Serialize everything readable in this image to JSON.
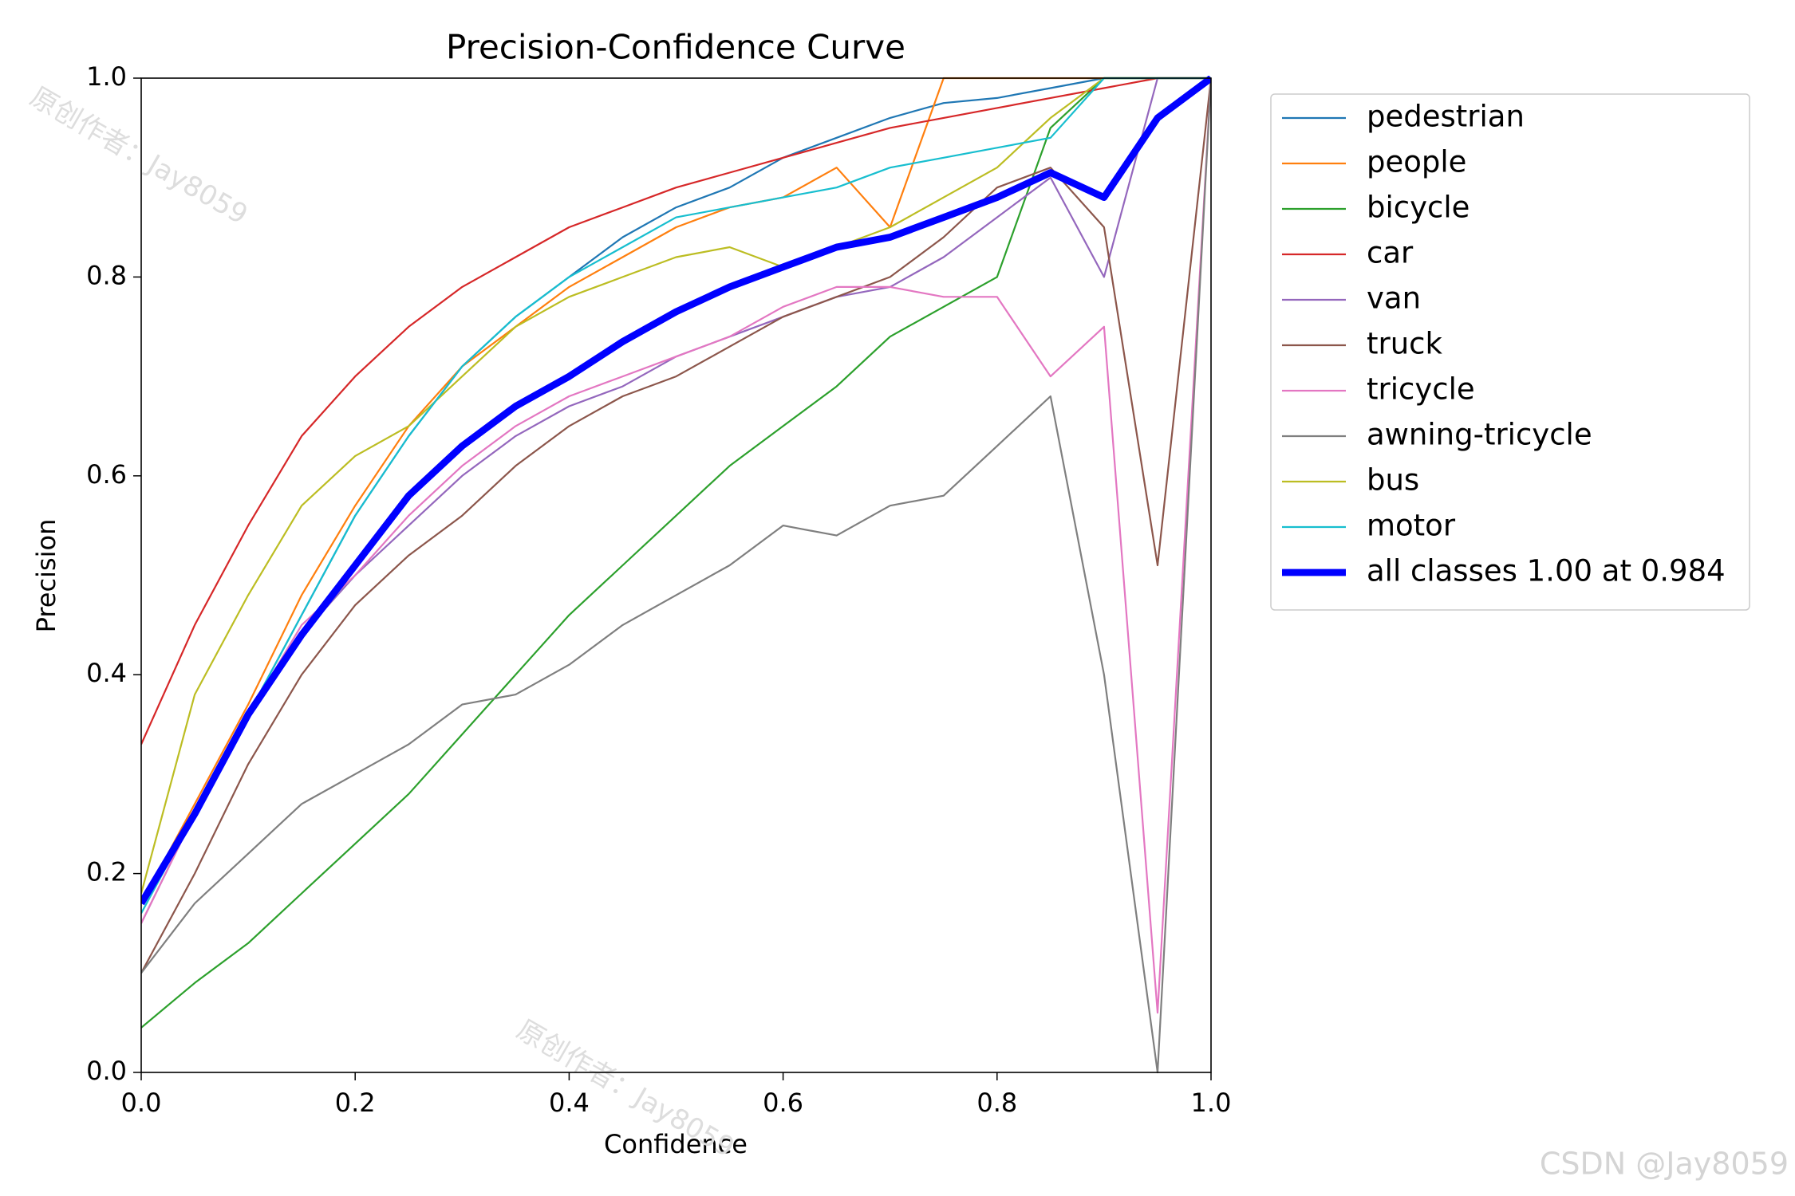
{
  "chart_data": {
    "type": "line",
    "title": "Precision-Confidence Curve",
    "x_label": "Confidence",
    "y_label": "Precision",
    "x": [
      0,
      0.05,
      0.1,
      0.15,
      0.2,
      0.25,
      0.3,
      0.35,
      0.4,
      0.45,
      0.5,
      0.55,
      0.6,
      0.65,
      0.7,
      0.75,
      0.8,
      0.85,
      0.9,
      0.95,
      1.0
    ],
    "xlim": [
      0,
      1
    ],
    "ylim": [
      0,
      1
    ],
    "xticks": [
      {
        "value": 0,
        "label": "0.0"
      },
      {
        "value": 0.2,
        "label": "0.2"
      },
      {
        "value": 0.4,
        "label": "0.4"
      },
      {
        "value": 0.6,
        "label": "0.6"
      },
      {
        "value": 0.8,
        "label": "0.8"
      },
      {
        "value": 1,
        "label": "1.0"
      }
    ],
    "yticks": [
      {
        "value": 0,
        "label": "0.0"
      },
      {
        "value": 0.2,
        "label": "0.2"
      },
      {
        "value": 0.4,
        "label": "0.4"
      },
      {
        "value": 0.6,
        "label": "0.6"
      },
      {
        "value": 0.8,
        "label": "0.8"
      },
      {
        "value": 1,
        "label": "1.0"
      }
    ],
    "legend": "outside upper right",
    "series": [
      {
        "name": "pedestrian",
        "color": "#1f77b4",
        "values": [
          0.17,
          0.26,
          0.36,
          0.46,
          0.56,
          0.64,
          0.71,
          0.76,
          0.8,
          0.84,
          0.87,
          0.89,
          0.92,
          0.94,
          0.96,
          0.975,
          0.98,
          0.99,
          1.0,
          1.0,
          1.0
        ]
      },
      {
        "name": "people",
        "color": "#ff7f0e",
        "values": [
          0.17,
          0.27,
          0.37,
          0.48,
          0.57,
          0.65,
          0.71,
          0.75,
          0.79,
          0.82,
          0.85,
          0.87,
          0.88,
          0.91,
          0.85,
          1.0,
          1.0,
          1.0,
          1.0,
          1.0,
          1.0
        ]
      },
      {
        "name": "bicycle",
        "color": "#2ca02c",
        "values": [
          0.045,
          0.09,
          0.13,
          0.18,
          0.23,
          0.28,
          0.34,
          0.4,
          0.46,
          0.51,
          0.56,
          0.61,
          0.65,
          0.69,
          0.74,
          0.77,
          0.8,
          0.95,
          1.0,
          1.0,
          1.0
        ]
      },
      {
        "name": "car",
        "color": "#d62728",
        "values": [
          0.33,
          0.45,
          0.55,
          0.64,
          0.7,
          0.75,
          0.79,
          0.82,
          0.85,
          0.87,
          0.89,
          0.905,
          0.92,
          0.935,
          0.95,
          0.96,
          0.97,
          0.98,
          0.99,
          1.0,
          1.0
        ]
      },
      {
        "name": "van",
        "color": "#9467bd",
        "values": [
          0.15,
          0.26,
          0.36,
          0.44,
          0.5,
          0.55,
          0.6,
          0.64,
          0.67,
          0.69,
          0.72,
          0.74,
          0.76,
          0.78,
          0.79,
          0.82,
          0.86,
          0.9,
          0.8,
          1.0,
          1.0
        ]
      },
      {
        "name": "truck",
        "color": "#8c564b",
        "values": [
          0.1,
          0.2,
          0.31,
          0.4,
          0.47,
          0.52,
          0.56,
          0.61,
          0.65,
          0.68,
          0.7,
          0.73,
          0.76,
          0.78,
          0.8,
          0.84,
          0.89,
          0.91,
          0.85,
          0.51,
          1.0
        ]
      },
      {
        "name": "tricycle",
        "color": "#e377c2",
        "values": [
          0.15,
          0.26,
          0.36,
          0.45,
          0.5,
          0.56,
          0.61,
          0.65,
          0.68,
          0.7,
          0.72,
          0.74,
          0.77,
          0.79,
          0.79,
          0.78,
          0.78,
          0.7,
          0.75,
          0.06,
          1.0
        ]
      },
      {
        "name": "awning-tricycle",
        "color": "#7f7f7f",
        "values": [
          0.1,
          0.17,
          0.22,
          0.27,
          0.3,
          0.33,
          0.37,
          0.38,
          0.41,
          0.45,
          0.48,
          0.51,
          0.55,
          0.54,
          0.57,
          0.58,
          0.63,
          0.68,
          0.4,
          0.0,
          1.0
        ]
      },
      {
        "name": "bus",
        "color": "#bcbd22",
        "values": [
          0.18,
          0.38,
          0.48,
          0.57,
          0.62,
          0.65,
          0.7,
          0.75,
          0.78,
          0.8,
          0.82,
          0.83,
          0.81,
          0.83,
          0.85,
          0.88,
          0.91,
          0.96,
          1.0,
          1.0,
          1.0
        ]
      },
      {
        "name": "motor",
        "color": "#17becf",
        "values": [
          0.16,
          0.26,
          0.36,
          0.46,
          0.56,
          0.64,
          0.71,
          0.76,
          0.8,
          0.83,
          0.86,
          0.87,
          0.88,
          0.89,
          0.91,
          0.92,
          0.93,
          0.94,
          1.0,
          1.0,
          1.0
        ]
      },
      {
        "name": "all classes 1.00 at 0.984",
        "color": "#0000ff",
        "width": 4,
        "values": [
          0.17,
          0.26,
          0.36,
          0.44,
          0.51,
          0.58,
          0.63,
          0.67,
          0.7,
          0.735,
          0.765,
          0.79,
          0.81,
          0.83,
          0.84,
          0.86,
          0.88,
          0.905,
          0.88,
          0.96,
          1.0
        ]
      }
    ],
    "watermarks": [
      "原创作者：Jay8059",
      "原创作者：Jay8059",
      "原创作者：Jay8059"
    ],
    "credit": "CSDN @Jay8059"
  }
}
